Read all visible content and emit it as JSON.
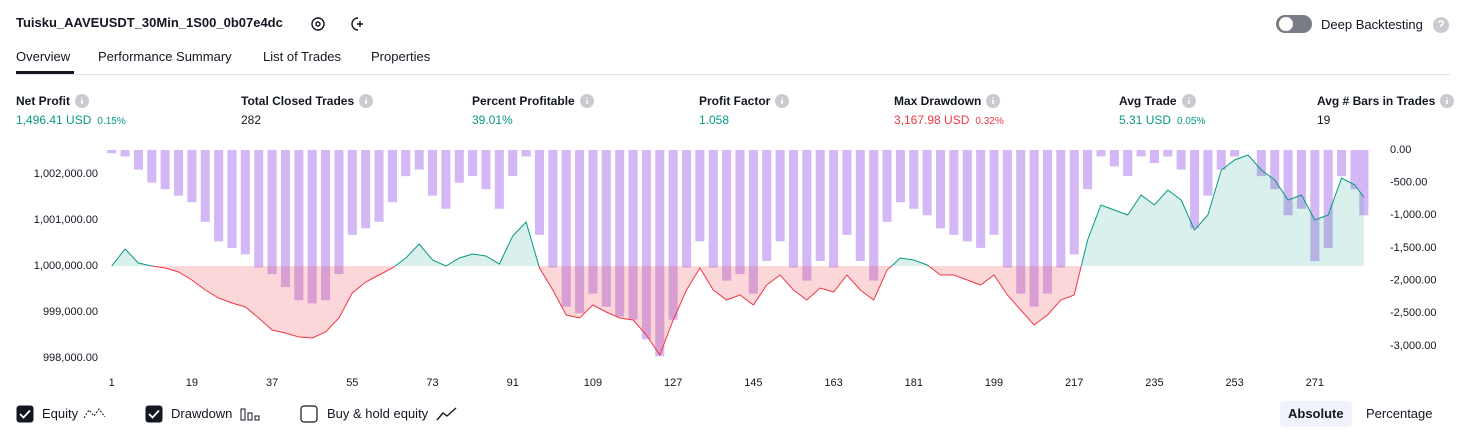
{
  "header": {
    "title": "Tuisku_AAVEUSDT_30Min_1S00_0b07e4dc",
    "deep_backtesting": "Deep Backtesting"
  },
  "tabs": [
    "Overview",
    "Performance Summary",
    "List of Trades",
    "Properties"
  ],
  "metrics": [
    {
      "label": "Net Profit",
      "value": "1,496.41 USD",
      "percent": "0.15%"
    },
    {
      "label": "Total Closed Trades",
      "value": "282"
    },
    {
      "label": "Percent Profitable",
      "value": "39.01%"
    },
    {
      "label": "Profit Factor",
      "value": "1.058"
    },
    {
      "label": "Max Drawdown",
      "value": "3,167.98 USD",
      "percent": "0.32%"
    },
    {
      "label": "Avg Trade",
      "value": "5.31 USD",
      "percent": "0.05%"
    },
    {
      "label": "Avg # Bars in Trades",
      "value": "19"
    }
  ],
  "chart_data": {
    "type": "combo",
    "x": [
      1,
      4,
      7,
      10,
      13,
      16,
      19,
      22,
      25,
      28,
      31,
      34,
      37,
      40,
      43,
      46,
      49,
      52,
      55,
      58,
      61,
      64,
      67,
      70,
      73,
      76,
      79,
      82,
      85,
      88,
      91,
      94,
      97,
      100,
      103,
      106,
      109,
      112,
      115,
      118,
      121,
      124,
      127,
      130,
      133,
      136,
      139,
      142,
      145,
      148,
      151,
      154,
      157,
      160,
      163,
      166,
      169,
      172,
      175,
      178,
      181,
      184,
      187,
      190,
      193,
      196,
      199,
      202,
      205,
      208,
      211,
      214,
      217,
      220,
      223,
      226,
      229,
      232,
      235,
      238,
      241,
      244,
      247,
      250,
      253,
      256,
      259,
      262,
      265,
      268,
      271,
      274,
      277,
      280,
      282
    ],
    "series": [
      {
        "name": "Equity",
        "type": "area",
        "color": "#089981",
        "color_below": "#f23645",
        "values": [
          1000000,
          1000370,
          1000065,
          1000000,
          999957,
          999870,
          999696,
          999478,
          999304,
          999196,
          999109,
          998870,
          998609,
          998543,
          998457,
          998435,
          998565,
          998870,
          999413,
          999652,
          999804,
          999957,
          1000174,
          1000478,
          1000130,
          1000000,
          1000174,
          1000261,
          1000217,
          1000043,
          1000652,
          1000957,
          999957,
          999478,
          998935,
          998870,
          999152,
          999000,
          998870,
          998826,
          998500,
          998065,
          998826,
          999478,
          999957,
          999478,
          999261,
          999370,
          999152,
          999587,
          999804,
          999478,
          999261,
          999522,
          999435,
          999804,
          999478,
          999261,
          999913,
          1000174,
          1000130,
          1000022,
          999804,
          999804,
          999696,
          999587,
          999804,
          999370,
          999043,
          998717,
          998935,
          999261,
          999370,
          1000565,
          1001326,
          1001217,
          1001109,
          1001543,
          1001326,
          1001652,
          1001435,
          1000783,
          1001109,
          1002087,
          1002304,
          1002413,
          1002087,
          1001870,
          1001435,
          1001543,
          1001000,
          1001109,
          1001913,
          1001761,
          1001496
        ]
      },
      {
        "name": "Drawdown",
        "type": "bar",
        "axis": "y2",
        "color": "#c9a6f2",
        "values": [
          -50,
          -100,
          -300,
          -500,
          -600,
          -700,
          -800,
          -1100,
          -1400,
          -1500,
          -1600,
          -1800,
          -1900,
          -2100,
          -2300,
          -2350,
          -2300,
          -1900,
          -1300,
          -1200,
          -1100,
          -800,
          -400,
          -300,
          -700,
          -900,
          -500,
          -400,
          -600,
          -900,
          -400,
          -100,
          -1300,
          -1800,
          -2400,
          -2500,
          -2200,
          -2400,
          -2550,
          -2600,
          -2900,
          -3160,
          -2600,
          -1800,
          -1400,
          -1800,
          -2000,
          -1900,
          -2200,
          -1700,
          -1400,
          -1800,
          -2000,
          -1700,
          -1800,
          -1300,
          -1700,
          -2000,
          -1100,
          -800,
          -900,
          -1000,
          -1200,
          -1300,
          -1400,
          -1500,
          -1300,
          -1800,
          -2200,
          -2400,
          -2200,
          -1800,
          -1600,
          -600,
          -100,
          -250,
          -400,
          -100,
          -200,
          -100,
          -300,
          -1200,
          -700,
          -300,
          -100,
          0,
          -400,
          -600,
          -1000,
          -900,
          -1700,
          -1500,
          -400,
          -600,
          -1000
        ]
      }
    ],
    "xlim": [
      -0.5,
      284.5
    ],
    "xticks": [
      1,
      19,
      37,
      55,
      73,
      91,
      109,
      127,
      145,
      163,
      181,
      199,
      217,
      235,
      253,
      271
    ],
    "ylim": [
      997739,
      1002521
    ],
    "yticks": [
      {
        "value": 1002000,
        "label": "1,002,000.00"
      },
      {
        "value": 1001000,
        "label": "1,001,000.00"
      },
      {
        "value": 1000000,
        "label": "1,000,000.00"
      },
      {
        "value": 999000,
        "label": "999,000.00"
      },
      {
        "value": 998000,
        "label": "998,000.00"
      }
    ],
    "y2lim": [
      -3370,
      0
    ],
    "y2ticks": [
      {
        "value": 0,
        "label": "0.00"
      },
      {
        "value": -500,
        "label": "-500.00"
      },
      {
        "value": -1000,
        "label": "-1,000.00"
      },
      {
        "value": -1500,
        "label": "-1,500.00"
      },
      {
        "value": -2000,
        "label": "-2,000.00"
      },
      {
        "value": -2500,
        "label": "-2,500.00"
      },
      {
        "value": -3000,
        "label": "-3,000.00"
      }
    ]
  },
  "controls": {
    "buy_hold": "Buy & hold equity",
    "modes": [
      "Absolute",
      "Percentage"
    ]
  }
}
